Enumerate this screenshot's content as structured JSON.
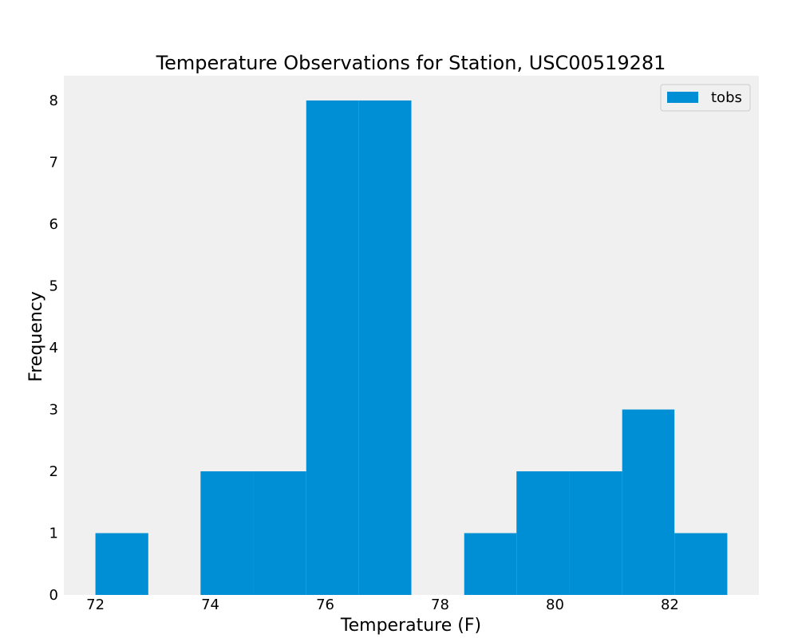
{
  "chart_data": {
    "type": "bar",
    "title": "Temperature Observations for Station, USC00519281",
    "xlabel": "Temperature (F)",
    "ylabel": "Frequency",
    "xlim": [
      71.45,
      83.55
    ],
    "ylim": [
      0,
      8.4
    ],
    "xticks": [
      72,
      74,
      76,
      78,
      80,
      82
    ],
    "yticks": [
      0,
      1,
      2,
      3,
      4,
      5,
      6,
      7,
      8
    ],
    "bin_edges": [
      72.0,
      72.92,
      73.83,
      74.75,
      75.67,
      76.58,
      77.5,
      78.42,
      79.33,
      80.25,
      81.17,
      82.08,
      83.0
    ],
    "series": [
      {
        "name": "tobs",
        "values": [
          1,
          0,
          2,
          2,
          8,
          8,
          0,
          1,
          2,
          2,
          3,
          1
        ]
      }
    ],
    "grid": false,
    "legend_position": "top-right",
    "colors": {
      "bar": "#008fd5",
      "plot_background": "#f0f0f0"
    }
  }
}
